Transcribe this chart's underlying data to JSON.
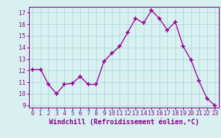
{
  "x": [
    0,
    1,
    2,
    3,
    4,
    5,
    6,
    7,
    8,
    9,
    10,
    11,
    12,
    13,
    14,
    15,
    16,
    17,
    18,
    19,
    20,
    21,
    22,
    23
  ],
  "y": [
    12.1,
    12.1,
    10.8,
    10.0,
    10.8,
    10.9,
    11.5,
    10.8,
    10.8,
    12.8,
    13.5,
    14.1,
    15.3,
    16.5,
    16.1,
    17.2,
    16.5,
    15.5,
    16.2,
    14.1,
    12.9,
    11.1,
    9.6,
    9.0
  ],
  "line_color": "#990099",
  "marker": "+",
  "marker_size": 4,
  "xlabel": "Windchill (Refroidissement éolien,°C)",
  "xlabel_fontsize": 7,
  "xlim": [
    -0.5,
    23.5
  ],
  "ylim": [
    8.8,
    17.5
  ],
  "yticks": [
    9,
    10,
    11,
    12,
    13,
    14,
    15,
    16,
    17
  ],
  "xticks": [
    0,
    1,
    2,
    3,
    4,
    5,
    6,
    7,
    8,
    9,
    10,
    11,
    12,
    13,
    14,
    15,
    16,
    17,
    18,
    19,
    20,
    21,
    22,
    23
  ],
  "grid_color": "#b0dde0",
  "background_color": "#d8f0f0",
  "tick_color": "#880088",
  "tick_fontsize": 6,
  "line_width": 1.0,
  "spine_color": "#880088"
}
